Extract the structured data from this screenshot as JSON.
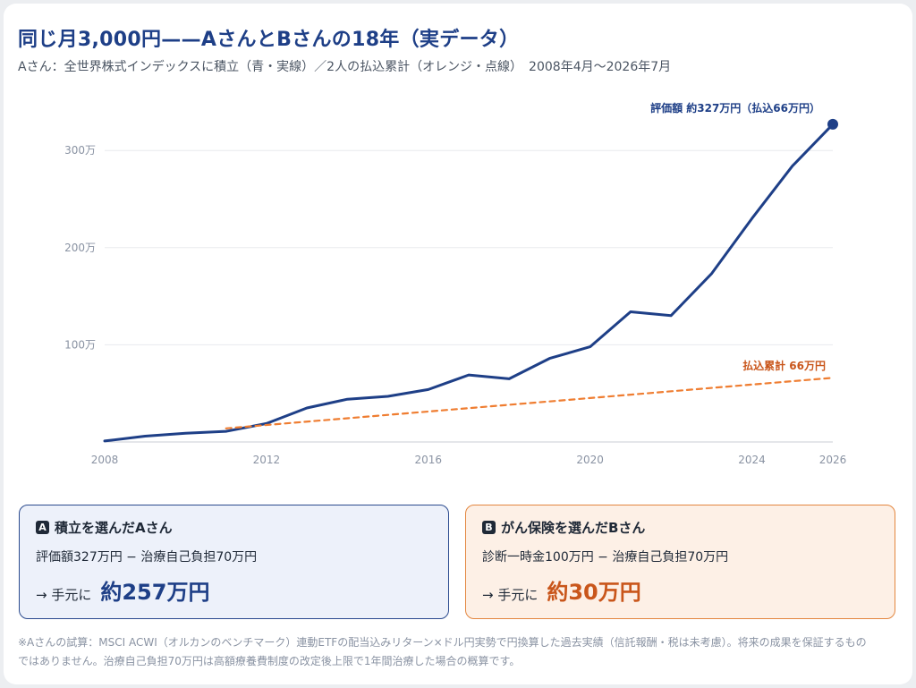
{
  "header": {
    "title": "同じ月3,000円——AさんとBさんの18年（実データ）",
    "subtitle": "Aさん：全世界株式インデックスに積立（青・実線）／2人の払込累計（オレンジ・点線）　2008年4月〜2026年7月"
  },
  "chart_data": {
    "type": "line",
    "x_ticks": [
      "2008",
      "2012",
      "2016",
      "2020",
      "2024",
      "2026"
    ],
    "y_ticks": [
      "100万",
      "200万",
      "300万"
    ],
    "y_tick_values": [
      100,
      200,
      300
    ],
    "ylim": [
      0,
      300
    ],
    "xlim": [
      2008,
      2026
    ],
    "grid": true,
    "series": [
      {
        "name": "評価額",
        "style": "solid",
        "color": "#1e3f87",
        "x": [
          2008,
          2009,
          2010,
          2011,
          2012,
          2013,
          2014,
          2015,
          2016,
          2017,
          2018,
          2019,
          2020,
          2021,
          2022,
          2023,
          2024,
          2025,
          2026
        ],
        "y": [
          1,
          6,
          9,
          11,
          19,
          35,
          44,
          47,
          54,
          69,
          65,
          86,
          98,
          134,
          130,
          173,
          230,
          284,
          327
        ],
        "end_marker": true
      },
      {
        "name": "払込累計",
        "style": "dashed",
        "color": "#ef7d31",
        "x": [
          2011,
          2026
        ],
        "y": [
          14,
          66
        ]
      }
    ],
    "annotations": {
      "blue_end": "評価額 約327万円（払込66万円）",
      "orange_end": "払込累計 66万円"
    }
  },
  "cards": {
    "a": {
      "badge": "A",
      "heading": "積立を選んだAさん",
      "detail": "評価額327万円 − 治療自己負担70万円",
      "prefix": "→ 手元に",
      "value": "約257万円"
    },
    "b": {
      "badge": "B",
      "heading": "がん保険を選んだBさん",
      "detail": "診断一時金100万円 − 治療自己負担70万円",
      "prefix": "→ 手元に",
      "value": "約30万円"
    }
  },
  "footnote": "※Aさんの試算：MSCI ACWI（オルカンのベンチマーク）連動ETFの配当込みリターン×ドル円実勢で円換算した過去実績（信託報酬・税は未考慮）。将来の成果を保証するものではありません。治療自己負担70万円は高額療養費制度の改定後上限で1年間治療した場合の概算です。",
  "colors": {
    "blue": "#1e3f87",
    "orange": "#ef7d31",
    "orange_text": "#c9561b"
  }
}
